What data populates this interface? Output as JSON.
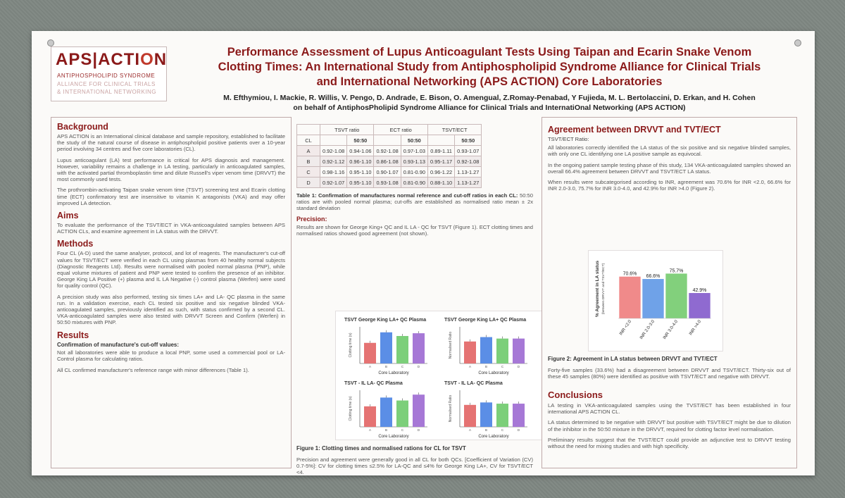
{
  "logo": {
    "main": "APS|ACTI",
    "main_o": "O",
    "main_n": "N",
    "sub1": "ANTIPHOSPHOLIPID SYNDROME",
    "sub2": "ALLIANCE FOR CLINICAL TRIALS",
    "sub3": "& INTERNATIONAL NETWORKING"
  },
  "title": {
    "line1": "Performance Assessment of Lupus Anticoagulant Tests Using Taipan and Ecarin Snake Venom",
    "line2": "Clotting Times: An International Study from Antiphospholipid Syndrome Alliance for Clinical Trials",
    "line3": "and International Networking (APS ACTION) Core Laboratories"
  },
  "authors": {
    "line1": "M. Efthymiou, I. Mackie, R. Willis, V. Pengo, D. Andrade, E. Bison, O. Amengual, Z.Romay-Penabad, Y Fujieda, M. L. Bertolaccini,  D. Erkan, and H. Cohen",
    "line2": "on behalf of AntiphosPholipid Syndrome Alliance for Clinical Trials and InternatiOnal Networking (APS ACTION)"
  },
  "background": {
    "heading": "Background",
    "p1": "APS ACTION is an International clinical database and sample repository, established to facilitate the study of the natural course of disease in antiphospholipid positive patients over a 10-year period involving 34 centres and five core laboratories (CL).",
    "p2": "Lupus anticoagulant (LA) test performance is critical for APS diagnosis and management. However, variability remains a challenge in LA testing, particularly in anticoagulated samples, with the activated partial thromboplastin time and dilute Russell's viper venom time (DRVVT) the most commonly used tests.",
    "p3": "The prothrombin-activating Taipan snake venom time (TSVT) screening test and Ecarin clotting time (ECT) confirmatory test are insensitive to vitamin K antagonists (VKA) and may offer improved LA detection."
  },
  "aims": {
    "heading": "Aims",
    "p1": "To evaluate the performance of the TSVT/ECT in VKA-anticoagulated samples between APS ACTION CLs, and examine agreement in LA status with the DRVVT."
  },
  "methods": {
    "heading": "Methods",
    "p1": "Four CL (A-D) used the same analyser, protocol, and lot of reagents. The manufacturer's cut-off values for TSVT/ECT were verified in each CL using plasmas from 40 healthy normal subjects (Diagnostic Reagents Ltd). Results were normalised with pooled normal plasma (PNP), while equal volume mixtures of patient and PNP were tested to confirm the presence of an inhibitor. George King LA Positive (+) plasma and IL LA Negative (-) control plasma (Werfen) were used for quality control (QC).",
    "p2": "A precision study was also performed, testing six times LA+ and LA- QC plasma in the same run. In a validation exercise, each CL tested six positive and six negative blinded VKA-anticoagulated samples, previously identified as such, with status confirmed by a second CL. VKA-anticoagulated samples were also tested with DRVVT Screen and Confirm (Werfen) in 50:50 mixtures with PNP."
  },
  "results": {
    "heading": "Results",
    "sub1": "Confirmation of manufacture's cut-off values:",
    "p1": "Not all laboratories were able to produce a local PNP, some used a commercial pool or LA-Control plasma for calculating ratios.",
    "p2": "All CL confirmed manufacturer's reference range with minor differences (Table 1)."
  },
  "table1": {
    "group_headers": [
      "TSVT ratio",
      "ECT ratio",
      "TSVT/ECT"
    ],
    "cl_header": "CL",
    "sub_headers": [
      "",
      "50:50",
      "",
      "50:50",
      "",
      "50:50"
    ],
    "rows": [
      {
        "cl": "A",
        "cells": [
          "0.92-1.08",
          "0.94-1.06",
          "0.92-1.08",
          "0.97-1.03",
          "0.89-1.11",
          "0.93-1.07"
        ]
      },
      {
        "cl": "B",
        "cells": [
          "0.92-1.12",
          "0.96-1.10",
          "0.86-1.08",
          "0.93-1.13",
          "0.95-1.17",
          "0.92-1.08"
        ]
      },
      {
        "cl": "C",
        "cells": [
          "0.98-1.16",
          "0.95-1.10",
          "0.90-1.07",
          "0.81-0.90",
          "0.96-1.22",
          "1.13-1.27"
        ]
      },
      {
        "cl": "D",
        "cells": [
          "0.92-1.07",
          "0.95-1.10",
          "0.93-1.08",
          "0.81-0.90",
          "0.88-1.10",
          "1.13-1.27"
        ]
      }
    ],
    "caption_bold": "Table 1: Confirmation of manufactures normal reference and cut-off ratios in each CL:",
    "caption": " 50:50 ratios are with pooled normal plasma; cut-offs are established as normalised ratio mean ± 2x standard deviation"
  },
  "precision": {
    "heading": "Precision:",
    "p1": "Results are shown for George King+ QC and IL LA - QC for TSVT (Figure 1). ECT clotting times and normalised ratios showed good agreement (not shown).",
    "fig_caption": "Figure 1: Clotting times and normalised rations for CL for TSVT",
    "p2": "Precision and agreement were generally good in all CL for both QCs. [Coefficient of Variation (CV) 0.7-5%]: CV for clotting times ≤2.5% for LA-QC and ≤4% for George King LA+, CV for TSVT/ECT <4."
  },
  "figure1": {
    "panels": [
      {
        "title": "TSVT George King LA+ QC Plasma",
        "ylabel": "Clotting time (s)",
        "xlabel": "Core Laboratory",
        "values": [
          45,
          68,
          60,
          66
        ],
        "ymax": 80
      },
      {
        "title": "TSVT George King LA+ QC Plasma",
        "ylabel": "Normalised Ratio",
        "xlabel": "Core Laboratory",
        "values": [
          1.5,
          1.8,
          1.7,
          1.7
        ],
        "ymax": 2.5
      },
      {
        "title": "TSVT - IL LA- QC Plasma",
        "ylabel": "Clotting time (s)",
        "xlabel": "Core Laboratory",
        "values": [
          28,
          40,
          36,
          44
        ],
        "ymax": 50
      },
      {
        "title": "TSVT - IL LA- QC Plasma",
        "ylabel": "Normalised Ratio",
        "xlabel": "Core Laboratory",
        "values": [
          0.9,
          1.0,
          0.95,
          0.95
        ],
        "ymax": 1.5
      }
    ],
    "categories": [
      "A",
      "B",
      "C",
      "D"
    ],
    "colors": [
      "#e57373",
      "#5b8ee6",
      "#7ccf7a",
      "#a678d6"
    ]
  },
  "agreement": {
    "heading": "Agreement between DRVVT and TVT/ECT",
    "sub1": "TSVT/ECT Ratio:",
    "p1": "All laboratories correctly identified the LA status of the six positive and six negative blinded samples, with only one CL identifying one LA positive sample as equivocal.",
    "p2": "In the ongoing patient sample testing phase of this study, 134 VKA-anticoagulated samples showed an overall 66.4% agreement between DRVVT and TSVT/ECT LA status.",
    "p3": "When results were subcategorised according to INR, agreement was 70.6% for INR <2.0, 66.6% for INR 2.0-3.0, 75.7% for INR 3.0-4.0, and 42.9% for INR >4.0 (Figure 2).",
    "fig_caption": "Figure 2: Agreement in LA status between DRVVT and TVT/ECT",
    "p4": "Forty-five samples (33.6%) had a disagreement between DRVVT and TSVT/ECT. Thirty-six out of these 45 samples (80%) were identified as positive with TSVT/ECT and negative with DRVVT."
  },
  "chart_data": {
    "type": "bar",
    "title": "",
    "categories": [
      "INR <2.0",
      "INR 2.0-3.0",
      "INR 3.0-4.0",
      "INR >4.0"
    ],
    "values": [
      70.6,
      66.6,
      75.7,
      42.9
    ],
    "value_labels": [
      "70.6%",
      "66.6%",
      "75.7%",
      "42.9%"
    ],
    "ylabel": "% Agreement in LA status",
    "ylabel2": "(between DRVVT and TSVT/ECT)",
    "xlabel": "",
    "ylim": [
      0,
      100
    ],
    "colors": [
      "#f08a8a",
      "#6fa2e8",
      "#82d07c",
      "#8f6ad0"
    ]
  },
  "conclusions": {
    "heading": "Conclusions",
    "p1": "LA testing in VKA-anticoagulated samples using the TVST/ECT has been established in four international APS ACTION CL.",
    "p2": "LA status determined to be negative with DRVVT but positive with TSVT/ECT might be due to dilution of the inhibitor in the 50:50 mixture in the DRVVT, required for clotting factor level normalisation.",
    "p3": "Preliminary results suggest that the TVST/ECT could provide an adjunctive test to DRVVT testing without the need for mixing studies and with high specificity."
  }
}
